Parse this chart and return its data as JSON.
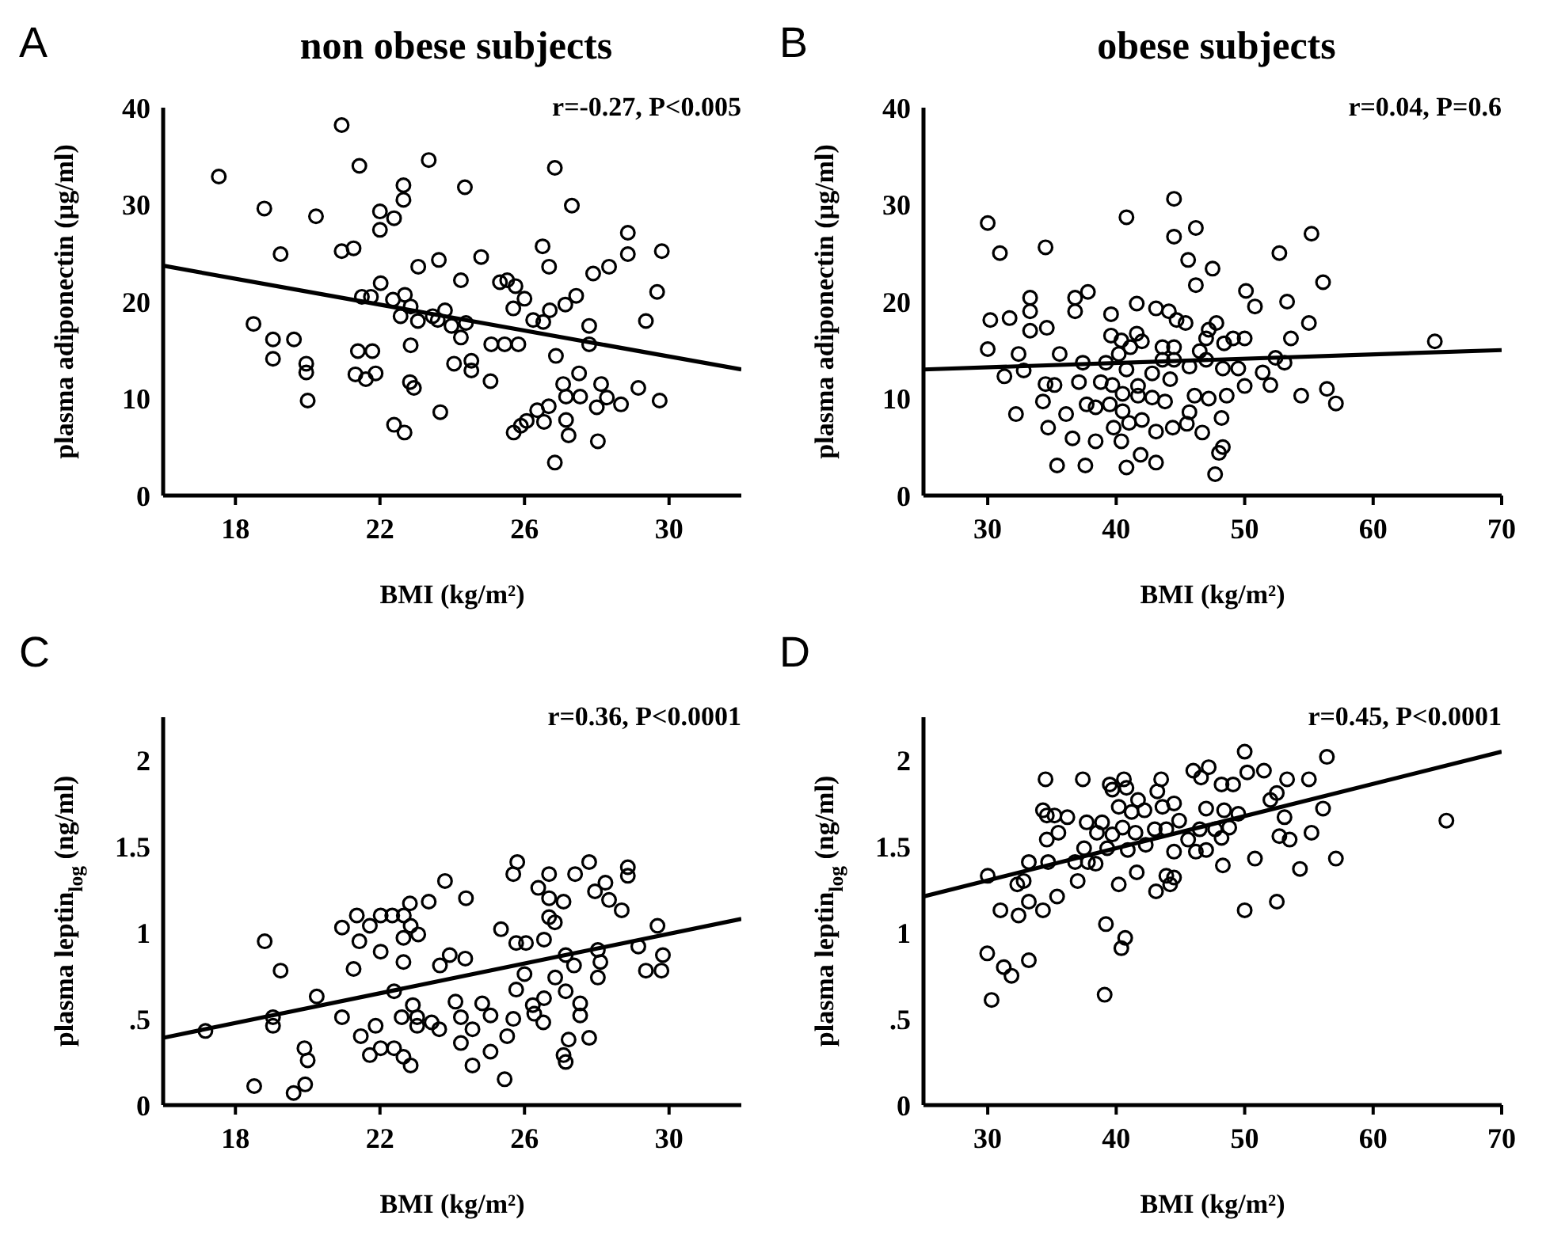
{
  "chart_data": [
    {
      "type": "scatter",
      "title": "non obese subjects",
      "xlabel": "BMI (kg/m²)",
      "ylabel": "plasma adiponectin (µg/ml)",
      "xlim": [
        16,
        32
      ],
      "xticks": [
        18,
        22,
        26,
        30
      ],
      "ylim": [
        0,
        40
      ],
      "yticks": [
        0,
        10,
        20,
        30,
        40
      ],
      "annotations": [
        "A",
        "r=-0.27, P<0.005"
      ],
      "series": [
        {
          "type": "scatter",
          "marker": "circle",
          "color": "#000000",
          "x": [
            17.54,
            20.94,
            21.43,
            23.35,
            22.65,
            22.65,
            24.35,
            26.84,
            27.31,
            18.8,
            20.23,
            22.0,
            22.39,
            22.0,
            20.94,
            21.27,
            19.25,
            23.06,
            23.63,
            24.8,
            26.5,
            26.68,
            28.86,
            28.86,
            29.8,
            27.9,
            28.34,
            29.67,
            24.24,
            25.32,
            25.52,
            25.75,
            26.0,
            25.69,
            22.02,
            21.5,
            21.75,
            22.36,
            22.69,
            22.85,
            22.57,
            23.05,
            23.46,
            23.8,
            23.6,
            23.98,
            24.38,
            24.24,
            26.7,
            27.13,
            27.43,
            26.24,
            26.52,
            27.79,
            27.79,
            29.36,
            18.5,
            19.04,
            19.62,
            19.04,
            19.96,
            19.96,
            20.0,
            21.39,
            21.79,
            21.32,
            21.61,
            21.88,
            22.85,
            22.83,
            22.94,
            24.05,
            24.53,
            24.53,
            25.08,
            25.45,
            25.83,
            25.06,
            23.67,
            22.39,
            22.68,
            26.87,
            27.51,
            27.07,
            27.15,
            27.54,
            28.12,
            28.28,
            28.0,
            28.67,
            29.15,
            29.74,
            26.67,
            26.35,
            26.54,
            26.06,
            25.9,
            25.7,
            27.15,
            27.22,
            28.03,
            26.84
          ],
          "values": [
            32.9,
            38.2,
            34.0,
            34.6,
            32.0,
            30.5,
            31.8,
            33.8,
            29.9,
            29.6,
            28.8,
            29.3,
            28.6,
            27.4,
            25.2,
            25.5,
            24.9,
            23.6,
            24.3,
            24.6,
            25.7,
            23.6,
            27.1,
            24.9,
            25.2,
            22.9,
            23.6,
            21.0,
            22.2,
            22.0,
            22.2,
            21.6,
            20.3,
            19.3,
            21.9,
            20.5,
            20.5,
            20.2,
            20.7,
            19.5,
            18.5,
            18.0,
            18.5,
            19.1,
            18.1,
            17.5,
            17.8,
            16.3,
            19.1,
            19.7,
            20.6,
            18.1,
            17.9,
            17.5,
            15.6,
            18.0,
            17.7,
            16.1,
            16.1,
            14.1,
            13.6,
            12.7,
            9.8,
            14.9,
            14.9,
            12.5,
            12.0,
            12.6,
            15.5,
            11.7,
            11.1,
            13.6,
            13.9,
            12.9,
            15.6,
            15.6,
            15.6,
            11.8,
            8.6,
            7.3,
            6.5,
            14.4,
            12.6,
            11.5,
            10.2,
            10.2,
            11.5,
            10.1,
            9.1,
            9.4,
            11.1,
            9.8,
            9.2,
            8.8,
            7.6,
            7.7,
            7.2,
            6.5,
            7.8,
            6.2,
            5.6,
            3.4
          ]
        },
        {
          "type": "line",
          "color": "#000000",
          "x": [
            16,
            32
          ],
          "values": [
            23.7,
            13.0
          ]
        }
      ]
    },
    {
      "type": "scatter",
      "title": "obese subjects",
      "xlabel": "BMI (kg/m²)",
      "ylabel": "plasma adiponectin (µg/ml)",
      "xlim": [
        25,
        70
      ],
      "xticks": [
        30,
        40,
        50,
        60,
        70
      ],
      "ylim": [
        0,
        40
      ],
      "yticks": [
        0,
        10,
        20,
        30,
        40
      ],
      "annotations": [
        "B",
        "r=0.04, P=0.6"
      ],
      "series": [
        {
          "type": "scatter",
          "marker": "circle",
          "color": "#000000",
          "x": [
            30.0,
            30.95,
            34.5,
            40.8,
            44.5,
            44.5,
            46.2,
            45.6,
            47.5,
            46.2,
            55.2,
            52.7,
            56.1,
            50.1,
            50.8,
            53.3,
            55.0,
            53.6,
            64.8,
            30.0,
            30.2,
            31.7,
            33.3,
            33.3,
            33.3,
            34.6,
            36.8,
            37.8,
            36.8,
            39.6,
            41.6,
            43.1,
            44.1,
            44.7,
            45.4,
            47.8,
            47.2,
            47.0,
            48.4,
            49.1,
            50.0,
            39.6,
            40.4,
            41.6,
            42.0,
            41.1,
            43.6,
            44.5,
            43.6,
            44.5,
            46.5,
            32.4,
            35.6,
            32.8,
            31.3,
            37.4,
            39.2,
            40.2,
            40.8,
            45.7,
            47.0,
            48.3,
            49.5,
            51.4,
            52.4,
            53.1,
            52.0,
            50.0,
            37.1,
            38.8,
            39.7,
            41.7,
            42.8,
            44.2,
            34.5,
            35.2,
            34.3,
            37.7,
            38.4,
            39.5,
            40.5,
            41.7,
            42.8,
            43.8,
            46.1,
            47.2,
            48.6,
            54.4,
            56.4,
            57.1,
            32.2,
            36.1,
            39.8,
            40.5,
            41.0,
            42.0,
            43.1,
            44.4,
            45.7,
            45.5,
            46.7,
            48.2,
            34.7,
            36.6,
            38.4,
            40.4,
            48.3,
            48.0,
            41.9,
            43.1,
            35.4,
            37.6,
            40.8,
            47.7
          ],
          "values": [
            28.1,
            25.0,
            25.6,
            28.7,
            30.6,
            26.7,
            27.6,
            24.3,
            23.4,
            21.7,
            27.0,
            25.0,
            22.0,
            21.1,
            19.5,
            20.0,
            17.8,
            16.2,
            15.9,
            15.1,
            18.1,
            18.3,
            20.4,
            19.0,
            17.0,
            17.3,
            20.4,
            21.0,
            19.0,
            18.7,
            19.8,
            19.3,
            19.0,
            18.1,
            17.8,
            17.8,
            17.1,
            16.2,
            15.7,
            16.2,
            16.2,
            16.5,
            16.0,
            16.7,
            15.9,
            15.3,
            15.3,
            15.3,
            14.0,
            14.0,
            14.9,
            14.6,
            14.6,
            12.9,
            12.3,
            13.7,
            13.7,
            14.6,
            13.0,
            13.3,
            14.0,
            13.1,
            13.1,
            12.7,
            14.2,
            13.7,
            11.4,
            11.3,
            11.7,
            11.7,
            11.4,
            11.3,
            12.6,
            12.0,
            11.5,
            11.4,
            9.7,
            9.4,
            9.1,
            9.4,
            10.5,
            10.3,
            10.1,
            9.7,
            10.3,
            10.0,
            10.3,
            10.3,
            11.0,
            9.5,
            8.4,
            8.4,
            7.0,
            8.7,
            7.5,
            7.8,
            6.6,
            7.0,
            8.6,
            7.4,
            6.5,
            8.0,
            7.0,
            5.9,
            5.6,
            5.6,
            5.0,
            4.4,
            4.2,
            3.4,
            3.1,
            3.1,
            2.9,
            2.2
          ]
        },
        {
          "type": "line",
          "color": "#000000",
          "x": [
            25,
            70
          ],
          "values": [
            13.0,
            15.0
          ]
        }
      ]
    },
    {
      "type": "scatter",
      "xlabel": "BMI (kg/m²)",
      "ylabel": "plasma leptin$_{log}$ (ng/ml)",
      "xlim": [
        16,
        32
      ],
      "xticks": [
        18,
        22,
        26,
        30
      ],
      "ylim": [
        0,
        2.25
      ],
      "yticks": [
        0,
        {
          "value": 0.5,
          "label": ".5"
        },
        1,
        1.5,
        2
      ],
      "annotations": [
        "C",
        "r=0.36, P<0.0001"
      ],
      "series": [
        {
          "type": "scatter",
          "marker": "circle",
          "color": "#000000",
          "x": [
            17.17,
            18.52,
            18.81,
            19.25,
            19.04,
            19.04,
            19.61,
            19.93,
            19.91,
            20.0,
            20.25,
            20.95,
            21.27,
            20.95,
            21.36,
            21.72,
            21.43,
            22.02,
            22.34,
            22.66,
            22.83,
            22.85,
            23.06,
            22.65,
            23.35,
            22.02,
            22.65,
            23.8,
            24.38,
            23.66,
            23.93,
            24.36,
            22.39,
            22.91,
            22.6,
            23.03,
            23.03,
            23.43,
            23.64,
            21.88,
            21.47,
            21.72,
            22.02,
            22.39,
            22.65,
            22.85,
            24.09,
            24.24,
            24.56,
            24.24,
            24.56,
            25.06,
            24.83,
            25.06,
            25.45,
            25.52,
            25.69,
            25.77,
            26.0,
            25.35,
            25.77,
            26.04,
            26.54,
            25.8,
            25.69,
            26.68,
            26.38,
            26.68,
            27.08,
            26.68,
            26.84,
            27.4,
            27.79,
            27.95,
            28.24,
            28.34,
            28.69,
            28.86,
            28.86,
            26.27,
            26.54,
            26.52,
            26.23,
            26.85,
            27.14,
            27.37,
            27.14,
            27.54,
            27.54,
            27.22,
            27.08,
            27.14,
            27.79,
            28.03,
            28.1,
            28.03,
            29.15,
            29.68,
            29.83,
            29.36,
            29.79
          ],
          "values": [
            0.43,
            0.11,
            0.95,
            0.78,
            0.51,
            0.46,
            0.07,
            0.12,
            0.33,
            0.26,
            0.63,
            1.03,
            0.79,
            0.51,
            1.1,
            1.04,
            0.95,
            1.1,
            1.1,
            1.1,
            1.17,
            1.04,
            0.99,
            0.97,
            1.18,
            0.89,
            0.83,
            1.3,
            1.2,
            0.81,
            0.87,
            0.85,
            0.66,
            0.58,
            0.51,
            0.51,
            0.46,
            0.48,
            0.44,
            0.46,
            0.4,
            0.29,
            0.33,
            0.33,
            0.28,
            0.23,
            0.6,
            0.51,
            0.44,
            0.36,
            0.23,
            0.31,
            0.59,
            0.52,
            0.15,
            0.4,
            0.5,
            0.67,
            0.76,
            1.02,
            0.94,
            0.94,
            0.96,
            1.41,
            1.34,
            1.34,
            1.26,
            1.2,
            1.18,
            1.09,
            1.06,
            1.34,
            1.41,
            1.24,
            1.29,
            1.19,
            1.13,
            1.38,
            1.33,
            0.53,
            0.62,
            0.48,
            0.58,
            0.74,
            0.87,
            0.81,
            0.66,
            0.59,
            0.52,
            0.38,
            0.29,
            0.25,
            0.39,
            0.9,
            0.83,
            0.74,
            0.92,
            1.04,
            0.87,
            0.78,
            0.78
          ]
        },
        {
          "type": "line",
          "color": "#000000",
          "x": [
            16,
            32
          ],
          "values": [
            0.39,
            1.08
          ]
        }
      ]
    },
    {
      "type": "scatter",
      "xlabel": "BMI (kg/m²)",
      "ylabel": "plasma leptin$_{log}$ (ng/ml)",
      "xlim": [
        25,
        70
      ],
      "xticks": [
        30,
        40,
        50,
        60,
        70
      ],
      "ylim": [
        0,
        2.25
      ],
      "yticks": [
        0,
        {
          "value": 0.5,
          "label": ".5"
        },
        1,
        1.5,
        2
      ],
      "annotations": [
        "D",
        "r=0.45, P<0.0001"
      ],
      "series": [
        {
          "type": "scatter",
          "marker": "circle",
          "color": "#000000",
          "x": [
            30.0,
            29.96,
            30.3,
            31.25,
            31.85,
            30.99,
            32.4,
            32.3,
            32.8,
            33.2,
            33.2,
            33.2,
            34.3,
            35.4,
            34.7,
            34.6,
            34.5,
            34.3,
            34.6,
            35.5,
            35.2,
            36.2,
            36.8,
            37.0,
            37.4,
            37.7,
            37.5,
            37.8,
            38.4,
            38.5,
            38.9,
            39.5,
            39.7,
            39.3,
            39.7,
            40.2,
            40.6,
            40.8,
            40.5,
            40.9,
            40.2,
            39.2,
            40.7,
            40.4,
            39.1,
            41.2,
            41.7,
            41.5,
            42.2,
            42.3,
            41.6,
            43.0,
            43.2,
            43.5,
            43.6,
            43.9,
            44.5,
            44.5,
            43.9,
            43.1,
            44.2,
            44.5,
            44.9,
            45.6,
            46.0,
            46.6,
            47.2,
            47.0,
            46.2,
            47.0,
            46.5,
            47.7,
            48.2,
            49.1,
            48.4,
            48.8,
            48.2,
            48.3,
            49.5,
            50.0,
            50.2,
            51.5,
            50.8,
            50.0,
            52.5,
            52.0,
            52.5,
            53.3,
            53.1,
            52.7,
            53.5,
            55.0,
            55.2,
            54.3,
            56.4,
            56.1,
            57.1,
            65.7
          ],
          "values": [
            1.33,
            0.88,
            0.61,
            0.8,
            0.75,
            1.13,
            1.1,
            1.28,
            1.3,
            1.41,
            1.18,
            0.84,
            1.13,
            1.21,
            1.41,
            1.54,
            1.89,
            1.71,
            1.68,
            1.58,
            1.68,
            1.67,
            1.41,
            1.3,
            1.89,
            1.64,
            1.49,
            1.41,
            1.4,
            1.58,
            1.64,
            1.86,
            1.83,
            1.49,
            1.57,
            1.73,
            1.89,
            1.84,
            1.61,
            1.48,
            1.28,
            1.05,
            0.97,
            0.91,
            0.64,
            1.7,
            1.77,
            1.58,
            1.71,
            1.51,
            1.35,
            1.6,
            1.82,
            1.89,
            1.73,
            1.6,
            1.75,
            1.47,
            1.33,
            1.24,
            1.28,
            1.32,
            1.65,
            1.54,
            1.94,
            1.9,
            1.96,
            1.72,
            1.47,
            1.48,
            1.6,
            1.6,
            1.86,
            1.86,
            1.71,
            1.61,
            1.55,
            1.39,
            1.69,
            2.05,
            1.93,
            1.94,
            1.43,
            1.13,
            1.18,
            1.77,
            1.81,
            1.89,
            1.67,
            1.56,
            1.54,
            1.89,
            1.58,
            1.37,
            2.02,
            1.72,
            1.43,
            1.65
          ]
        },
        {
          "type": "line",
          "color": "#000000",
          "x": [
            25,
            70
          ],
          "values": [
            1.21,
            2.05
          ]
        }
      ]
    }
  ]
}
